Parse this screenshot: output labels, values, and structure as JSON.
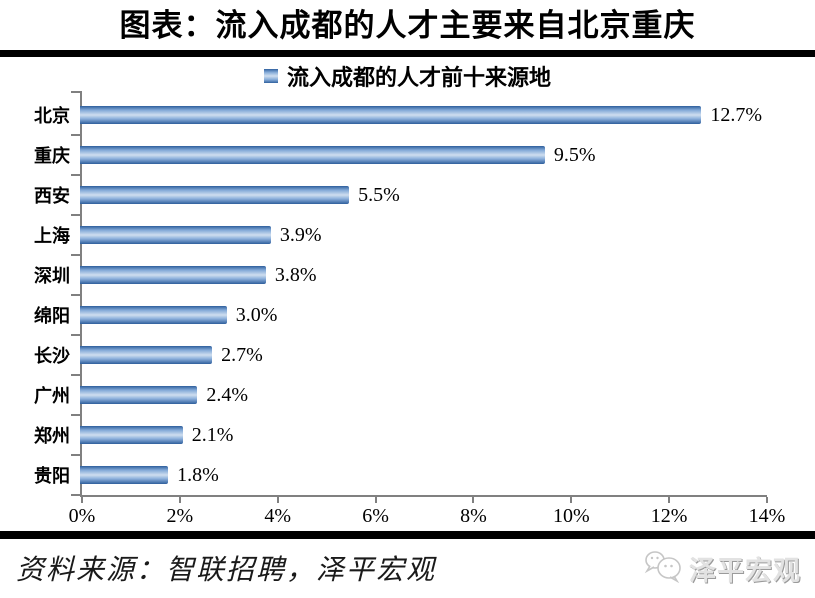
{
  "page": {
    "title": "图表：流入成都的人才主要来自北京重庆",
    "footer": {
      "source": "资料来源：智联招聘，泽平宏观",
      "brand": "泽平宏观"
    }
  },
  "chart_data": {
    "type": "bar",
    "orientation": "horizontal",
    "title": "流入成都的人才前十来源地",
    "legend": [
      "流入成都的人才前十来源地"
    ],
    "legend_position": "top-center",
    "categories": [
      "北京",
      "重庆",
      "西安",
      "上海",
      "深圳",
      "绵阳",
      "长沙",
      "广州",
      "郑州",
      "贵阳"
    ],
    "values": [
      12.7,
      9.5,
      5.5,
      3.9,
      3.8,
      3.0,
      2.7,
      2.4,
      2.1,
      1.8
    ],
    "value_labels": [
      "12.7%",
      "9.5%",
      "5.5%",
      "3.9%",
      "3.8%",
      "3.0%",
      "2.7%",
      "2.4%",
      "2.1%",
      "1.8%"
    ],
    "xlabel": "",
    "ylabel": "",
    "xlim": [
      0,
      14
    ],
    "x_tick_labels": [
      "0%",
      "2%",
      "4%",
      "6%",
      "8%",
      "10%",
      "12%",
      "14%"
    ],
    "grid": false,
    "bar_color": "#4f81bd",
    "bar_gradient": [
      "#2e5e9c",
      "#cfdeef",
      "#2e5e9c"
    ],
    "axis_color": "#808080"
  }
}
